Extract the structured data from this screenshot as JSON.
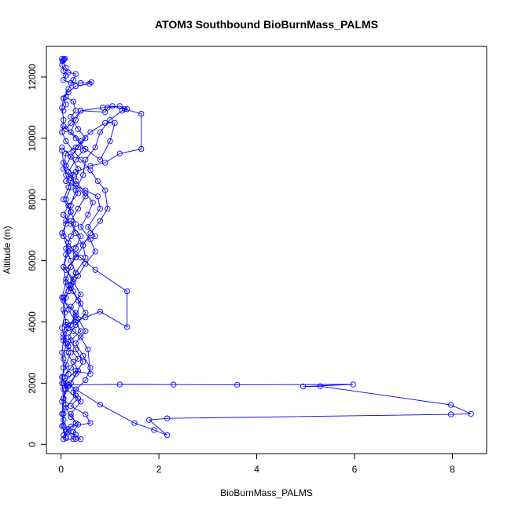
{
  "chart_data": {
    "type": "line",
    "title": "ATOM3 Southbound BioBurnMass_PALMS",
    "xlabel": "BioBurnMass_PALMS",
    "ylabel": "Altitude (m)",
    "xlim": [
      -0.3,
      8.7
    ],
    "ylim": [
      -300,
      13000
    ],
    "x_ticks": [
      0,
      2,
      4,
      6,
      8
    ],
    "y_ticks": [
      0,
      2000,
      4000,
      6000,
      8000,
      10000,
      12000
    ],
    "x_tick_labels": [
      "0",
      "2",
      "4",
      "6",
      "8"
    ],
    "y_tick_labels": [
      "0",
      "2000",
      "4000",
      "6000",
      "8000",
      "10000",
      "12000"
    ],
    "grid": false,
    "legend": "none",
    "color": "#0000ff",
    "series": [
      {
        "points": [
          [
            0.05,
            170
          ],
          [
            0.4,
            170
          ],
          [
            0.3,
            320
          ],
          [
            0.1,
            420
          ],
          [
            0.2,
            580
          ],
          [
            0.6,
            700
          ],
          [
            0.5,
            980
          ],
          [
            0.2,
            1250
          ],
          [
            0.35,
            1500
          ],
          [
            0.1,
            1800
          ],
          [
            0.15,
            1950
          ],
          [
            1.2,
            1960
          ],
          [
            2.3,
            1955
          ],
          [
            3.6,
            1950
          ],
          [
            5.97,
            1960
          ],
          [
            4.95,
            1890
          ],
          [
            5.3,
            1900
          ],
          [
            7.97,
            1290
          ],
          [
            8.38,
            1000
          ],
          [
            7.97,
            980
          ],
          [
            2.17,
            850
          ],
          [
            1.8,
            800
          ],
          [
            2.17,
            300
          ],
          [
            1.9,
            470
          ],
          [
            1.5,
            700
          ],
          [
            0.8,
            1300
          ],
          [
            0.3,
            1800
          ],
          [
            0.1,
            2000
          ]
        ]
      },
      {
        "points": [
          [
            0.05,
            2000
          ],
          [
            0.3,
            2400
          ],
          [
            0.6,
            2300
          ],
          [
            0.55,
            3100
          ],
          [
            0.4,
            3500
          ],
          [
            0.25,
            3700
          ],
          [
            0.1,
            3900
          ],
          [
            0.5,
            4150
          ],
          [
            0.8,
            4340
          ],
          [
            1.35,
            3830
          ],
          [
            1.35,
            5000
          ],
          [
            0.7,
            5700
          ],
          [
            0.4,
            6100
          ],
          [
            0.15,
            6400
          ],
          [
            0.7,
            6800
          ],
          [
            0.55,
            7100
          ],
          [
            0.8,
            7700
          ],
          [
            0.75,
            8100
          ],
          [
            0.5,
            8300
          ],
          [
            0.1,
            8600
          ]
        ]
      },
      {
        "points": [
          [
            0.1,
            8600
          ],
          [
            0.3,
            8900
          ],
          [
            0.6,
            9100
          ],
          [
            0.9,
            9200
          ],
          [
            1.2,
            9500
          ],
          [
            1.64,
            9650
          ],
          [
            1.64,
            10800
          ],
          [
            1.3,
            10950
          ],
          [
            1.05,
            11050
          ],
          [
            0.85,
            11000
          ],
          [
            0.4,
            10900
          ],
          [
            0.2,
            10500
          ],
          [
            0.1,
            10300
          ],
          [
            0.05,
            10400
          ]
        ]
      },
      {
        "points": [
          [
            0.05,
            10400
          ],
          [
            0.3,
            10000
          ],
          [
            0.5,
            9650
          ],
          [
            0.8,
            9300
          ],
          [
            1.0,
            9900
          ],
          [
            1.1,
            10500
          ],
          [
            0.9,
            10500
          ],
          [
            0.6,
            10200
          ],
          [
            0.3,
            9700
          ],
          [
            0.1,
            9500
          ],
          [
            0.05,
            9000
          ],
          [
            0.2,
            8700
          ],
          [
            0.35,
            8200
          ],
          [
            0.15,
            7800
          ],
          [
            0.05,
            7500
          ]
        ]
      },
      {
        "points": [
          [
            0.05,
            7500
          ],
          [
            0.2,
            7200
          ],
          [
            0.4,
            6800
          ],
          [
            0.3,
            6400
          ],
          [
            0.1,
            6200
          ],
          [
            0.05,
            5800
          ],
          [
            0.25,
            5400
          ],
          [
            0.15,
            5000
          ],
          [
            0.05,
            4700
          ],
          [
            0.3,
            4300
          ],
          [
            0.2,
            3900
          ],
          [
            0.05,
            3600
          ],
          [
            0.15,
            3200
          ],
          [
            0.35,
            2800
          ],
          [
            0.2,
            2500
          ],
          [
            0.05,
            2200
          ]
        ]
      },
      {
        "points": [
          [
            0.05,
            12550
          ],
          [
            0.02,
            12400
          ],
          [
            0.05,
            12200
          ],
          [
            0.1,
            12050
          ],
          [
            0.05,
            11900
          ],
          [
            0.2,
            11800
          ],
          [
            0.4,
            11800
          ],
          [
            0.62,
            11830
          ],
          [
            0.58,
            11780
          ],
          [
            0.3,
            11700
          ],
          [
            0.15,
            11500
          ],
          [
            0.05,
            11300
          ],
          [
            0.1,
            11100
          ],
          [
            0.05,
            10900
          ]
        ]
      },
      {
        "points": [
          [
            0.02,
            12600
          ],
          [
            0.06,
            12580
          ],
          [
            0.08,
            12600
          ],
          [
            0.03,
            12520
          ],
          [
            0.1,
            12300
          ],
          [
            0.15,
            12150
          ],
          [
            0.3,
            12100
          ],
          [
            0.25,
            11900
          ],
          [
            0.15,
            11600
          ],
          [
            0.05,
            11300
          ],
          [
            0.02,
            11000
          ],
          [
            0.05,
            10600
          ],
          [
            0.02,
            10200
          ]
        ]
      },
      {
        "points": [
          [
            0.02,
            10200
          ],
          [
            0.1,
            9900
          ],
          [
            0.25,
            9600
          ],
          [
            0.4,
            9300
          ],
          [
            0.6,
            8950
          ],
          [
            0.75,
            8600
          ],
          [
            0.9,
            8300
          ],
          [
            0.95,
            7700
          ],
          [
            0.8,
            7300
          ],
          [
            0.6,
            6900
          ],
          [
            0.45,
            6500
          ],
          [
            0.5,
            6100
          ],
          [
            0.3,
            5600
          ],
          [
            0.2,
            5200
          ],
          [
            0.1,
            4800
          ],
          [
            0.05,
            4400
          ],
          [
            0.1,
            4000
          ],
          [
            0.05,
            3500
          ],
          [
            0.02,
            3000
          ],
          [
            0.05,
            2500
          ],
          [
            0.02,
            2000
          ],
          [
            0.05,
            1500
          ],
          [
            0.02,
            1000
          ],
          [
            0.05,
            600
          ],
          [
            0.1,
            200
          ]
        ]
      },
      {
        "points": [
          [
            0.05,
            300
          ],
          [
            0.15,
            500
          ],
          [
            0.3,
            700
          ],
          [
            0.2,
            1000
          ],
          [
            0.4,
            1400
          ],
          [
            0.25,
            1700
          ],
          [
            0.5,
            2100
          ],
          [
            0.6,
            2500
          ],
          [
            0.45,
            2900
          ],
          [
            0.3,
            3300
          ],
          [
            0.5,
            3700
          ],
          [
            0.35,
            4100
          ],
          [
            0.2,
            4500
          ],
          [
            0.4,
            4900
          ],
          [
            0.25,
            5300
          ],
          [
            0.1,
            5700
          ],
          [
            0.3,
            6100
          ],
          [
            0.45,
            6500
          ],
          [
            0.3,
            6900
          ],
          [
            0.2,
            7300
          ],
          [
            0.35,
            7700
          ],
          [
            0.5,
            8100
          ],
          [
            0.3,
            8500
          ],
          [
            0.15,
            8900
          ],
          [
            0.3,
            9300
          ],
          [
            0.45,
            9600
          ],
          [
            0.4,
            9900
          ],
          [
            0.2,
            10200
          ],
          [
            0.3,
            10600
          ],
          [
            0.4,
            10900
          ]
        ]
      },
      {
        "points": [
          [
            0.4,
            10900
          ],
          [
            0.9,
            10850
          ],
          [
            0.95,
            11000
          ],
          [
            1.2,
            11050
          ],
          [
            1.35,
            10950
          ],
          [
            1.25,
            10900
          ],
          [
            1.0,
            10600
          ],
          [
            0.8,
            10200
          ],
          [
            0.7,
            9700
          ],
          [
            0.5,
            9300
          ],
          [
            0.45,
            8800
          ],
          [
            0.3,
            8300
          ],
          [
            0.2,
            7800
          ],
          [
            0.1,
            7300
          ],
          [
            0.05,
            6800
          ],
          [
            0.15,
            6300
          ],
          [
            0.05,
            5800
          ],
          [
            0.1,
            5300
          ],
          [
            0.02,
            4800
          ],
          [
            0.08,
            4300
          ],
          [
            0.02,
            3800
          ],
          [
            0.1,
            3300
          ],
          [
            0.05,
            2800
          ],
          [
            0.15,
            2300
          ],
          [
            0.05,
            1800
          ],
          [
            0.1,
            1300
          ],
          [
            0.05,
            800
          ],
          [
            0.15,
            400
          ],
          [
            0.25,
            170
          ]
        ]
      },
      {
        "points": [
          [
            0.02,
            9700
          ],
          [
            0.2,
            9400
          ],
          [
            0.35,
            9000
          ],
          [
            0.3,
            8600
          ],
          [
            0.5,
            8200
          ],
          [
            0.65,
            7900
          ],
          [
            0.55,
            7500
          ],
          [
            0.4,
            7100
          ],
          [
            0.6,
            6700
          ],
          [
            0.7,
            6300
          ],
          [
            0.5,
            5900
          ],
          [
            0.35,
            5500
          ],
          [
            0.2,
            5100
          ],
          [
            0.35,
            4700
          ],
          [
            0.5,
            4300
          ],
          [
            0.3,
            3900
          ],
          [
            0.15,
            3500
          ],
          [
            0.3,
            3100
          ],
          [
            0.45,
            2700
          ],
          [
            0.3,
            2300
          ],
          [
            0.15,
            1900
          ],
          [
            0.05,
            1500
          ]
        ]
      },
      {
        "points": [
          [
            0.1,
            11350
          ],
          [
            0.25,
            11200
          ],
          [
            0.3,
            10900
          ],
          [
            0.2,
            10700
          ],
          [
            0.35,
            10300
          ],
          [
            0.5,
            10000
          ],
          [
            0.35,
            9700
          ],
          [
            0.2,
            9400
          ],
          [
            0.1,
            9100
          ],
          [
            0.25,
            8800
          ],
          [
            0.15,
            8400
          ],
          [
            0.05,
            8000
          ],
          [
            0.2,
            7600
          ],
          [
            0.1,
            7200
          ],
          [
            0.02,
            6900
          ]
        ]
      },
      {
        "points": [
          [
            0.02,
            6900
          ],
          [
            0.15,
            6600
          ],
          [
            0.3,
            6200
          ],
          [
            0.2,
            5800
          ],
          [
            0.1,
            5400
          ],
          [
            0.25,
            5000
          ],
          [
            0.4,
            4600
          ],
          [
            0.3,
            4200
          ],
          [
            0.15,
            3800
          ],
          [
            0.05,
            3400
          ],
          [
            0.2,
            3000
          ],
          [
            0.1,
            2600
          ],
          [
            0.02,
            2200
          ],
          [
            0.1,
            1800
          ],
          [
            0.02,
            1400
          ],
          [
            0.05,
            1000
          ],
          [
            0.02,
            600
          ],
          [
            0.1,
            250
          ]
        ]
      },
      {
        "points": [
          [
            0.3,
            180
          ],
          [
            0.25,
            400
          ],
          [
            0.35,
            650
          ],
          [
            0.2,
            900
          ],
          [
            0.1,
            1200
          ],
          [
            0.3,
            1600
          ],
          [
            0.2,
            2000
          ],
          [
            0.35,
            2400
          ],
          [
            0.25,
            2700
          ],
          [
            0.1,
            3000
          ],
          [
            0.2,
            3400
          ],
          [
            0.4,
            3700
          ],
          [
            0.3,
            4000
          ],
          [
            0.15,
            4400
          ],
          [
            0.05,
            4800
          ],
          [
            0.15,
            5200
          ],
          [
            0.3,
            5600
          ],
          [
            0.2,
            6000
          ],
          [
            0.1,
            6400
          ],
          [
            0.2,
            6800
          ],
          [
            0.3,
            7200
          ],
          [
            0.2,
            7600
          ],
          [
            0.1,
            8000
          ],
          [
            0.2,
            8400
          ],
          [
            0.1,
            8800
          ],
          [
            0.05,
            9200
          ],
          [
            0.02,
            9600
          ]
        ]
      }
    ]
  }
}
